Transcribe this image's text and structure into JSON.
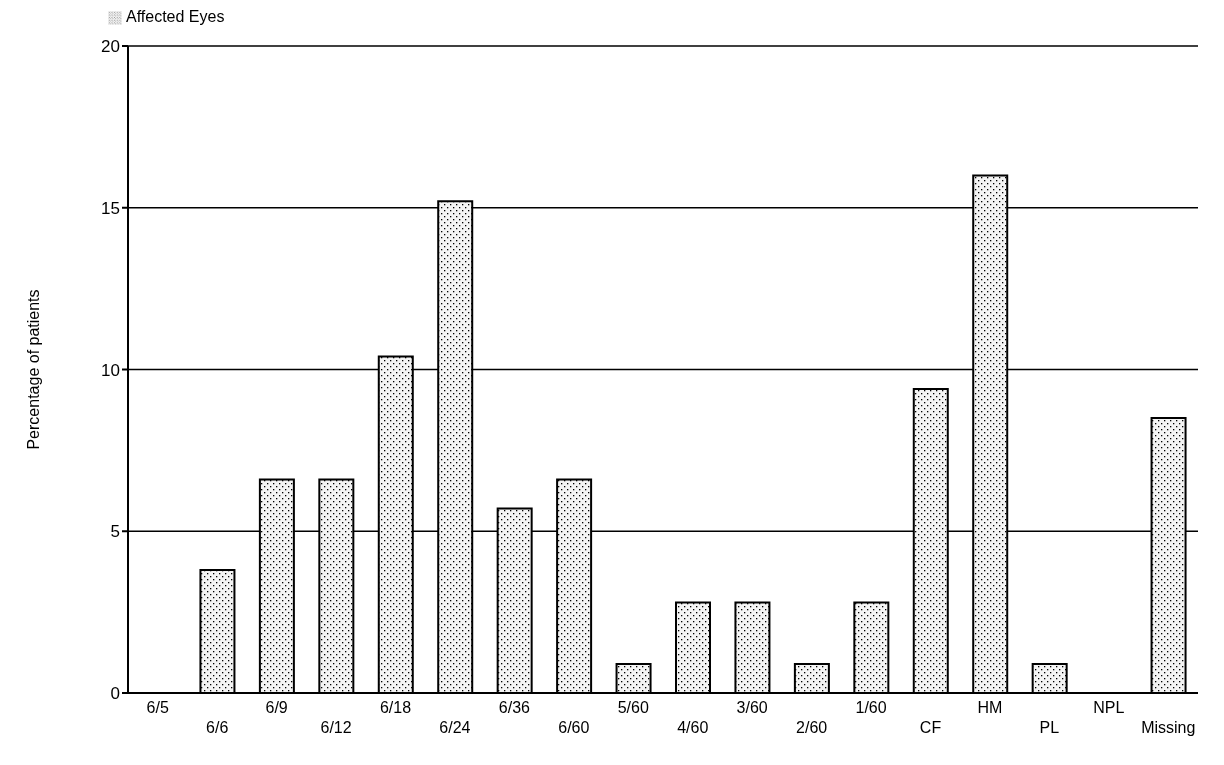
{
  "chart_data": {
    "type": "bar",
    "ylabel": "Percentage of patients",
    "categories": [
      "6/5",
      "6/6",
      "6/9",
      "6/12",
      "6/18",
      "6/24",
      "6/36",
      "6/60",
      "5/60",
      "4/60",
      "3/60",
      "2/60",
      "1/60",
      "CF",
      "HM",
      "PL",
      "NPL",
      "Missing"
    ],
    "series": [
      {
        "name": "Affected Eyes",
        "color": "#000000",
        "values": [
          0,
          3.8,
          6.6,
          6.6,
          10.4,
          15.2,
          5.7,
          6.6,
          0.9,
          2.8,
          2.8,
          0.9,
          2.8,
          9.4,
          16.0,
          0.9,
          0,
          8.5
        ]
      }
    ],
    "ylim": [
      0,
      20
    ],
    "yticks": [
      0,
      5,
      10,
      15,
      20
    ],
    "grid": "y",
    "legend": "top left"
  }
}
